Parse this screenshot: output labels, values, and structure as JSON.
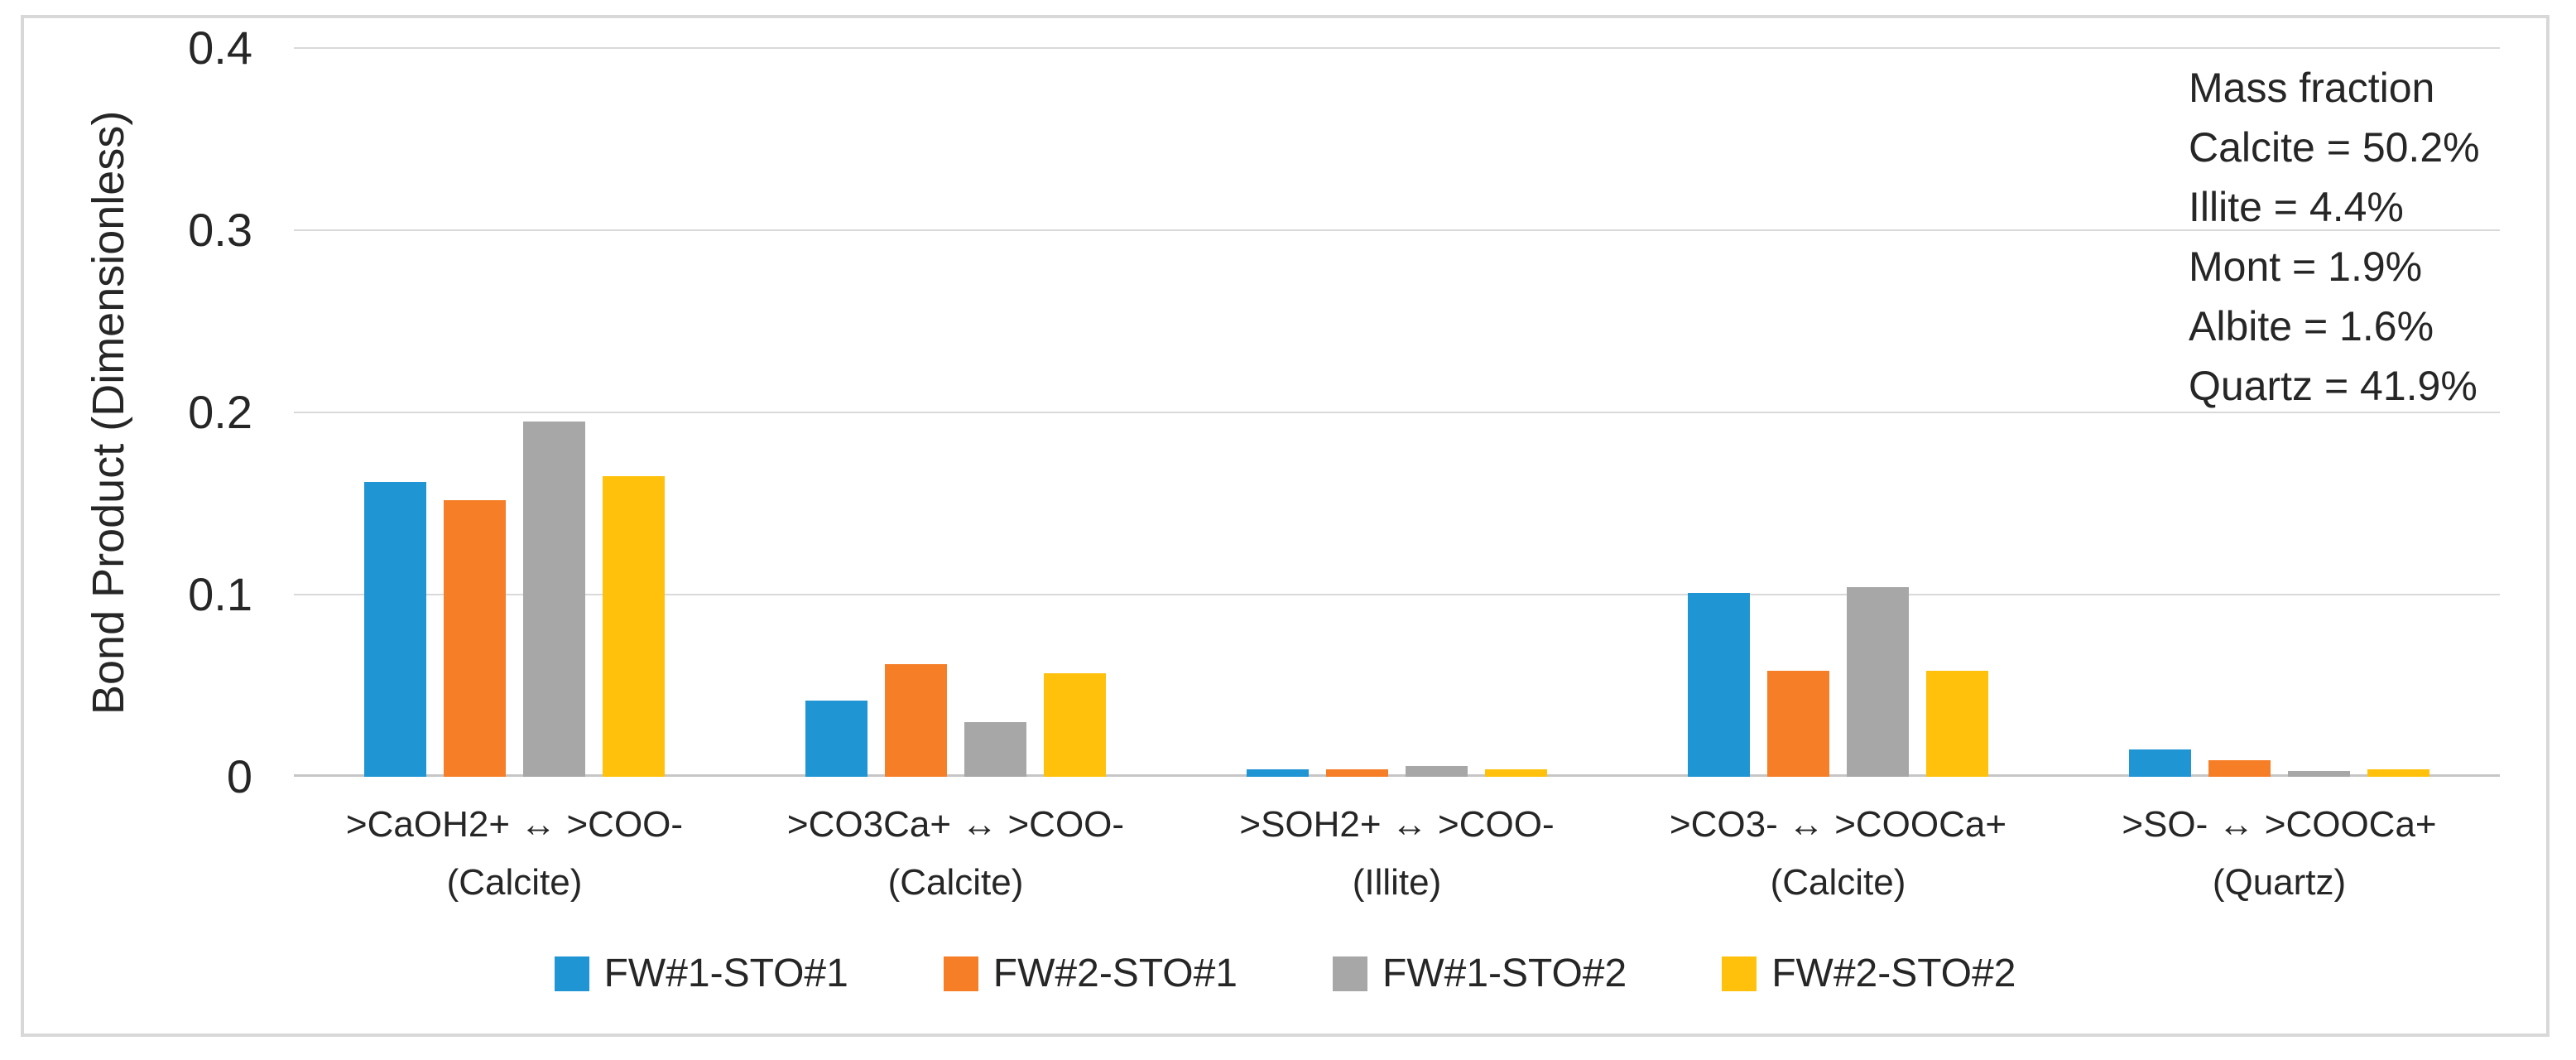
{
  "figure": {
    "background": "#ffffff",
    "border_color": "#d8d8d8"
  },
  "chart_data": {
    "type": "bar",
    "title": "",
    "xlabel": "",
    "ylabel": "Bond Product (Dimensionless)",
    "ylim": [
      0,
      0.4
    ],
    "yticks": [
      0,
      0.1,
      0.2,
      0.3,
      0.4
    ],
    "ytick_labels": [
      "0",
      "0.1",
      "0.2",
      "0.3",
      "0.4"
    ],
    "grid": true,
    "legend_position": "bottom",
    "categories": [
      {
        "line1": ">CaOH2+ ↔ >COO-",
        "line2": "(Calcite)"
      },
      {
        "line1": ">CO3Ca+ ↔ >COO-",
        "line2": "(Calcite)"
      },
      {
        "line1": ">SOH2+ ↔ >COO-",
        "line2": "(Illite)"
      },
      {
        "line1": ">CO3- ↔ >COOCa+",
        "line2": "(Calcite)"
      },
      {
        "line1": ">SO- ↔ >COOCa+",
        "line2": "(Quartz)"
      }
    ],
    "series": [
      {
        "name": "FW#1-STO#1",
        "color": "#1f95d4",
        "values": [
          0.162,
          0.042,
          0.004,
          0.101,
          0.015
        ]
      },
      {
        "name": "FW#2-STO#1",
        "color": "#f57e27",
        "values": [
          0.152,
          0.062,
          0.004,
          0.058,
          0.009
        ]
      },
      {
        "name": "FW#1-STO#2",
        "color": "#a7a7a7",
        "values": [
          0.195,
          0.03,
          0.006,
          0.104,
          0.003
        ]
      },
      {
        "name": "FW#2-STO#2",
        "color": "#ffc10b",
        "values": [
          0.165,
          0.057,
          0.004,
          0.058,
          0.004
        ]
      }
    ],
    "annotation": {
      "lines": [
        "Mass fraction",
        "Calcite = 50.2%",
        "Illite = 4.4%",
        "Mont = 1.9%",
        "Albite = 1.6%",
        "Quartz = 41.9%"
      ]
    },
    "colors": {
      "gridline": "#d9d9d9",
      "axis_line": "#c6c6c6",
      "text": "#262626"
    }
  }
}
